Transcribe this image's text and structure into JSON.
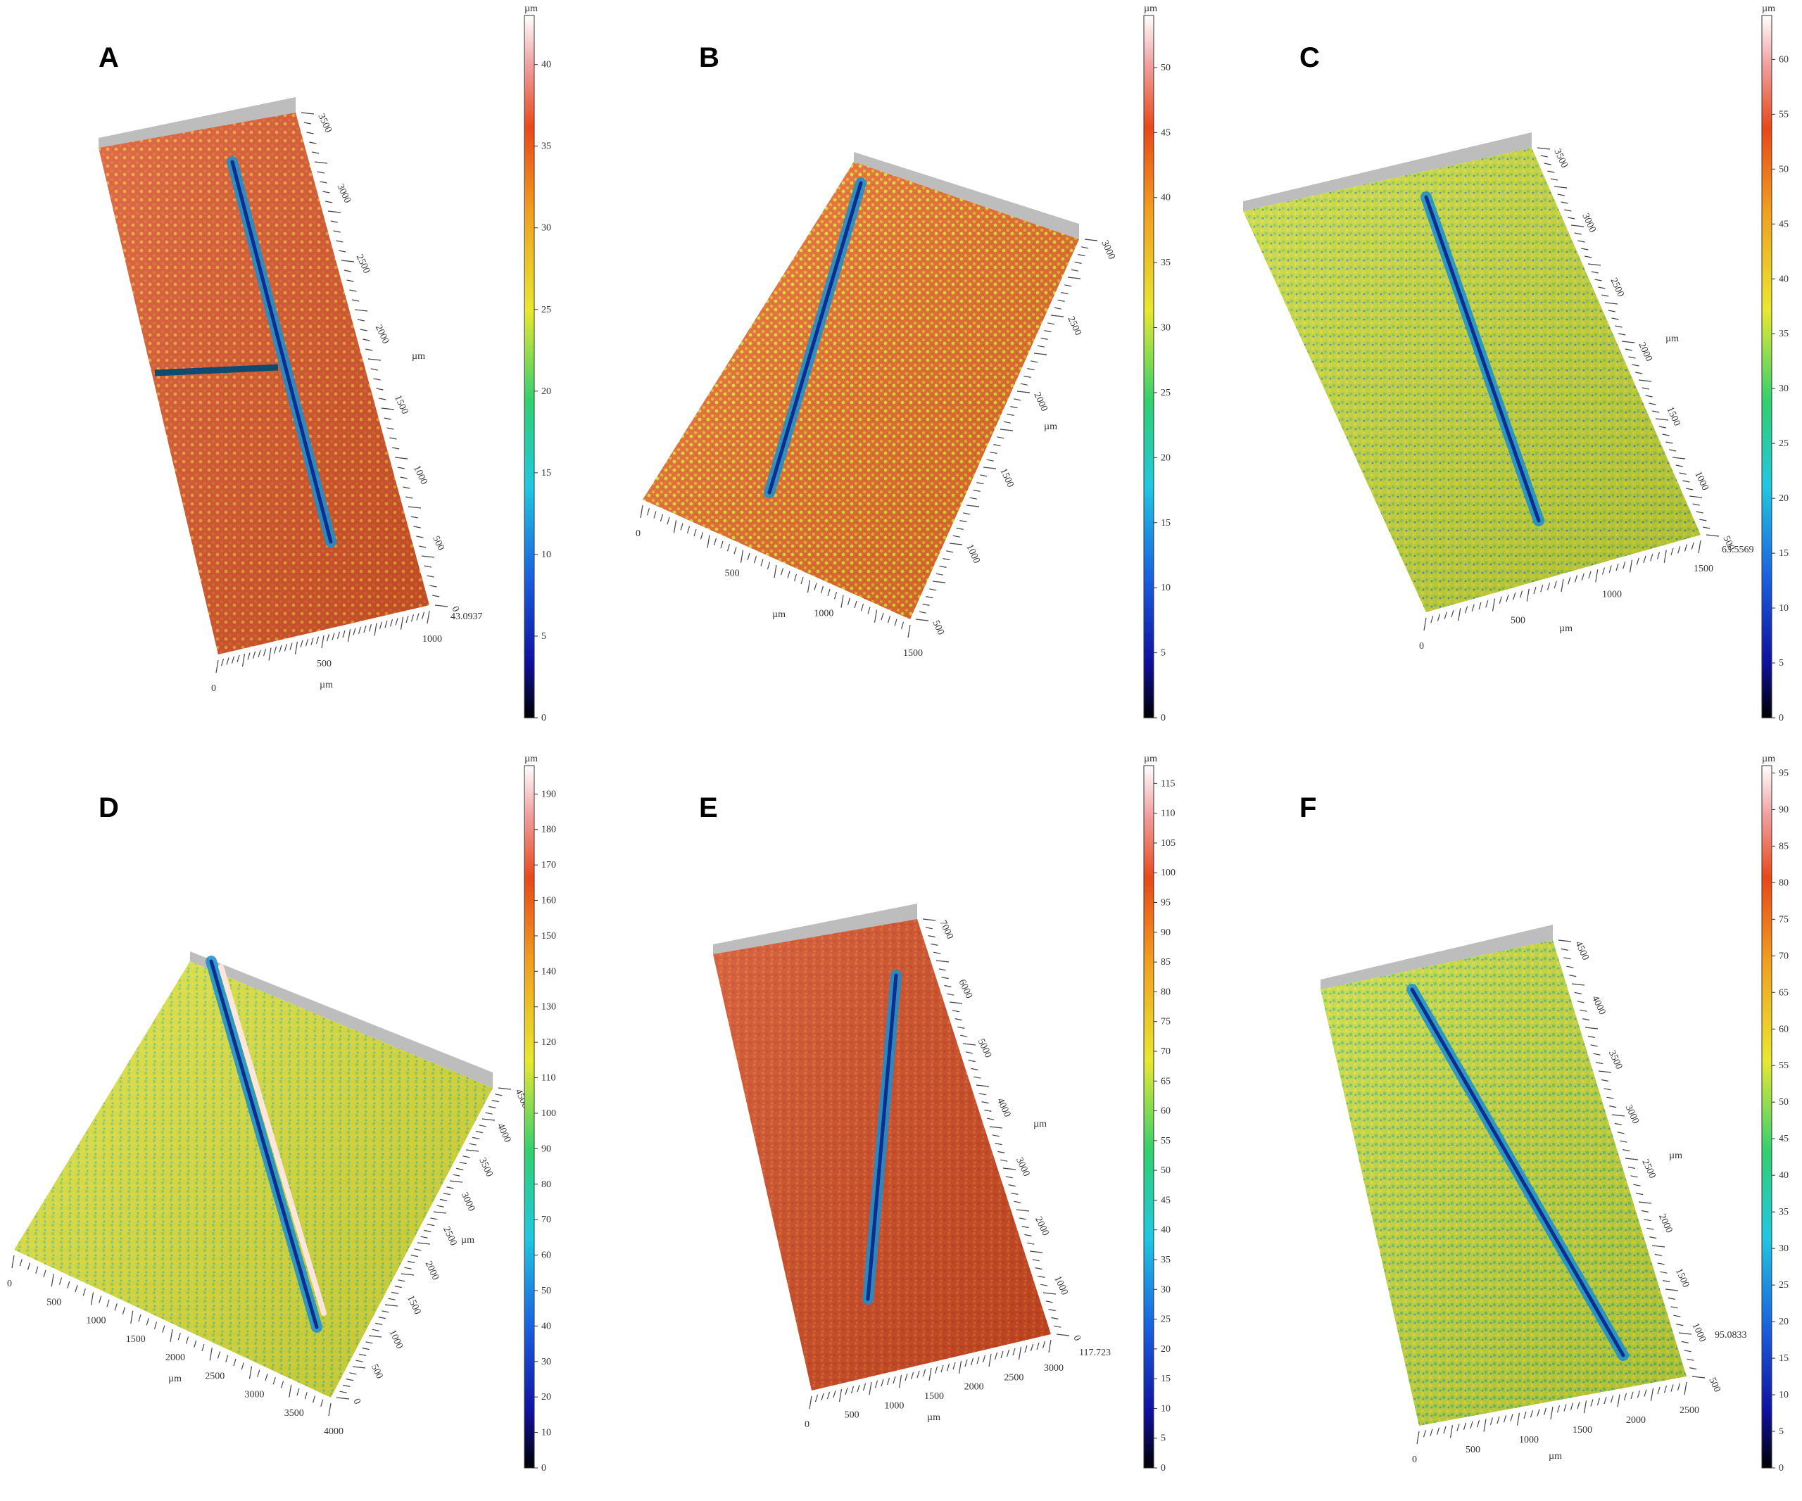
{
  "panels": [
    {
      "letter": "A",
      "palette": [
        "#d9532a",
        "#e0682b",
        "#f0a030",
        "#d9532a"
      ],
      "scale": {
        "unit": "µm",
        "ticks": [
          "0",
          "5",
          "10",
          "15",
          "20",
          "25",
          "30",
          "35",
          "40"
        ],
        "max": 43
      },
      "x_axis": {
        "ticks": [
          "0",
          "500",
          "1000"
        ],
        "unit": "µm"
      },
      "y_axis": {
        "ticks": [
          "0",
          "500",
          "1000",
          "1500",
          "2000",
          "2500",
          "3000",
          "3500"
        ],
        "unit": "µm"
      },
      "z_label": "43.0937"
    },
    {
      "letter": "B",
      "palette": [
        "#e86c2a",
        "#f3b230",
        "#e0e030",
        "#d65a2a"
      ],
      "scale": {
        "unit": "µm",
        "ticks": [
          "0",
          "5",
          "10",
          "15",
          "20",
          "25",
          "30",
          "35",
          "40",
          "45",
          "50"
        ],
        "max": 54
      },
      "x_axis": {
        "ticks": [
          "0",
          "500",
          "1000",
          "1500"
        ],
        "unit": "µm"
      },
      "y_axis": {
        "ticks": [
          "500",
          "1000",
          "1500",
          "2000",
          "2500",
          "3000"
        ],
        "unit": "µm"
      },
      "z_label": ""
    },
    {
      "letter": "C",
      "palette": [
        "#c8d83a",
        "#e3e030",
        "#8ccc48",
        "#1f6ad8"
      ],
      "scale": {
        "unit": "µm",
        "ticks": [
          "0",
          "5",
          "10",
          "15",
          "20",
          "25",
          "30",
          "35",
          "40",
          "45",
          "50",
          "55",
          "60"
        ],
        "max": 64
      },
      "x_axis": {
        "ticks": [
          "0",
          "500",
          "1000",
          "1500"
        ],
        "unit": "µm"
      },
      "y_axis": {
        "ticks": [
          "500",
          "1000",
          "1500",
          "2000",
          "2500",
          "3000",
          "3500"
        ],
        "unit": "µm"
      },
      "z_label": "63.5569"
    },
    {
      "letter": "D",
      "palette": [
        "#d9e03a",
        "#9fd048",
        "#e6e03a",
        "#26b8c8"
      ],
      "scale": {
        "unit": "µm",
        "ticks": [
          "0",
          "10",
          "20",
          "30",
          "40",
          "50",
          "60",
          "70",
          "80",
          "90",
          "100",
          "110",
          "120",
          "130",
          "140",
          "150",
          "160",
          "170",
          "180",
          "190"
        ],
        "max": 198
      },
      "x_axis": {
        "ticks": [
          "0",
          "500",
          "1000",
          "1500",
          "2000",
          "2500",
          "3000",
          "3500",
          "4000"
        ],
        "unit": "µm"
      },
      "y_axis": {
        "ticks": [
          "0",
          "500",
          "1000",
          "1500",
          "2000",
          "2500",
          "3000",
          "3500",
          "4000",
          "4500"
        ],
        "unit": "µm"
      },
      "z_label": ""
    },
    {
      "letter": "E",
      "palette": [
        "#d24a22",
        "#e0602a",
        "#c84022",
        "#e87830"
      ],
      "scale": {
        "unit": "µm",
        "ticks": [
          "0",
          "5",
          "10",
          "15",
          "20",
          "25",
          "30",
          "35",
          "40",
          "45",
          "50",
          "55",
          "60",
          "65",
          "70",
          "75",
          "80",
          "85",
          "90",
          "95",
          "100",
          "105",
          "110",
          "115"
        ],
        "max": 118
      },
      "x_axis": {
        "ticks": [
          "0",
          "500",
          "1000",
          "1500",
          "2000",
          "2500",
          "3000"
        ],
        "unit": "µm"
      },
      "y_axis": {
        "ticks": [
          "0",
          "1000",
          "2000",
          "3000",
          "4000",
          "5000",
          "6000",
          "7000"
        ],
        "unit": "µm"
      },
      "z_label": "117.723"
    },
    {
      "letter": "F",
      "palette": [
        "#c4d83a",
        "#e6e030",
        "#6cc85a",
        "#2a8ad0"
      ],
      "scale": {
        "unit": "µm",
        "ticks": [
          "0",
          "5",
          "10",
          "15",
          "20",
          "25",
          "30",
          "35",
          "40",
          "45",
          "50",
          "55",
          "60",
          "65",
          "70",
          "75",
          "80",
          "85",
          "90",
          "95"
        ],
        "max": 96
      },
      "x_axis": {
        "ticks": [
          "0",
          "500",
          "1000",
          "1500",
          "2000",
          "2500"
        ],
        "unit": "µm"
      },
      "y_axis": {
        "ticks": [
          "500",
          "1000",
          "1500",
          "2000",
          "2500",
          "3000",
          "3500",
          "4000",
          "4500"
        ],
        "unit": "µm"
      },
      "z_label": "95.0833"
    }
  ]
}
